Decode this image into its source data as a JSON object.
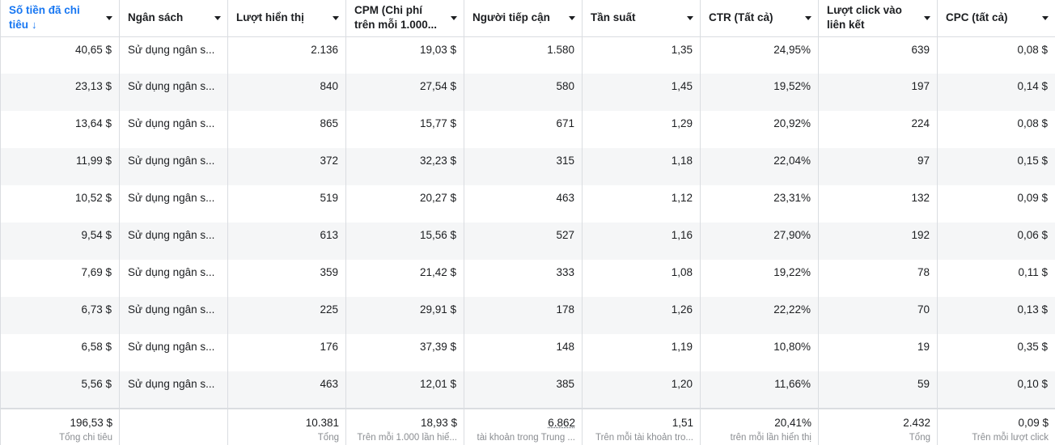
{
  "columns": [
    {
      "label": "Số tiền đã chi tiêu",
      "sort_icon": "↓"
    },
    {
      "label": "Ngân sách"
    },
    {
      "label": "Lượt hiển thị"
    },
    {
      "label": "CPM (Chi phí trên mỗi 1.000..."
    },
    {
      "label": "Người tiếp cận"
    },
    {
      "label": "Tần suất"
    },
    {
      "label": "CTR (Tất cả)"
    },
    {
      "label": "Lượt click vào liên kết"
    },
    {
      "label": "CPC (tất cả)"
    }
  ],
  "rows": [
    [
      "40,65 $",
      "Sử dụng ngân s...",
      "2.136",
      "19,03 $",
      "1.580",
      "1,35",
      "24,95%",
      "639",
      "0,08 $"
    ],
    [
      "23,13 $",
      "Sử dụng ngân s...",
      "840",
      "27,54 $",
      "580",
      "1,45",
      "19,52%",
      "197",
      "0,14 $"
    ],
    [
      "13,64 $",
      "Sử dụng ngân s...",
      "865",
      "15,77 $",
      "671",
      "1,29",
      "20,92%",
      "224",
      "0,08 $"
    ],
    [
      "11,99 $",
      "Sử dụng ngân s...",
      "372",
      "32,23 $",
      "315",
      "1,18",
      "22,04%",
      "97",
      "0,15 $"
    ],
    [
      "10,52 $",
      "Sử dụng ngân s...",
      "519",
      "20,27 $",
      "463",
      "1,12",
      "23,31%",
      "132",
      "0,09 $"
    ],
    [
      "9,54 $",
      "Sử dụng ngân s...",
      "613",
      "15,56 $",
      "527",
      "1,16",
      "27,90%",
      "192",
      "0,06 $"
    ],
    [
      "7,69 $",
      "Sử dụng ngân s...",
      "359",
      "21,42 $",
      "333",
      "1,08",
      "19,22%",
      "78",
      "0,11 $"
    ],
    [
      "6,73 $",
      "Sử dụng ngân s...",
      "225",
      "29,91 $",
      "178",
      "1,26",
      "22,22%",
      "70",
      "0,13 $"
    ],
    [
      "6,58 $",
      "Sử dụng ngân s...",
      "176",
      "37,39 $",
      "148",
      "1,19",
      "10,80%",
      "19",
      "0,35 $"
    ],
    [
      "5,56 $",
      "Sử dụng ngân s...",
      "463",
      "12,01 $",
      "385",
      "1,20",
      "11,66%",
      "59",
      "0,10 $"
    ]
  ],
  "totals": [
    {
      "value": "196,53 $",
      "sub": "Tổng chi tiêu"
    },
    {
      "value": "",
      "sub": ""
    },
    {
      "value": "10.381",
      "sub": "Tổng"
    },
    {
      "value": "18,93 $",
      "sub": "Trên mỗi 1.000 lần hiể..."
    },
    {
      "value": "6.862",
      "sub": "tài khoản trong Trung ..."
    },
    {
      "value": "1,51",
      "sub": "Trên mỗi tài khoản tro..."
    },
    {
      "value": "20,41%",
      "sub": "trên mỗi lần hiển thị"
    },
    {
      "value": "2.432",
      "sub": "Tổng"
    },
    {
      "value": "0,09 $",
      "sub": "Trên mỗi lượt click"
    }
  ],
  "colors": {
    "accent": "#1877f2",
    "row_alt": "#f5f6f7",
    "border": "#dadde1",
    "sub_text": "#8a8d91"
  },
  "icons": {
    "column_menu": "chevron-down-icon",
    "sort": "sort-down-arrow-icon"
  }
}
